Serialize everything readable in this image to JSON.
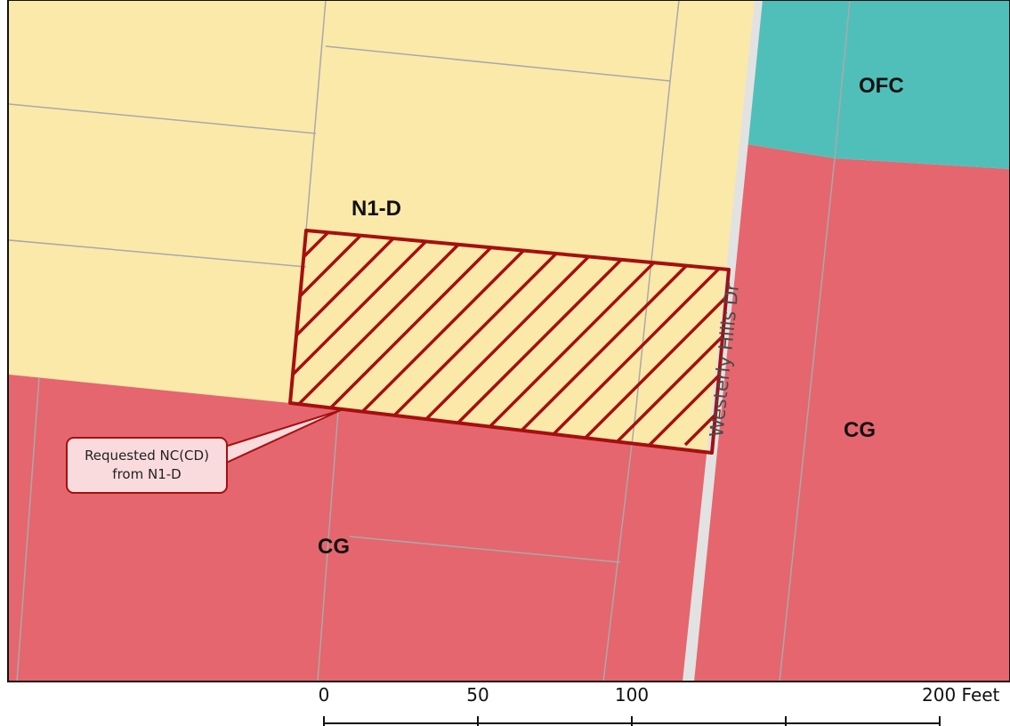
{
  "map": {
    "colors": {
      "n1d_residential": "#fbe9aa",
      "cg_commercial": "#e5666e",
      "ofc_office": "#50bfb9",
      "parcel_line": "#a9a9a9",
      "street": "#e2e2e2",
      "request_outline": "#a60f0f",
      "callout_fill": "#fadbdd"
    },
    "zones": {
      "n1d": "N1-D",
      "ofc": "OFC",
      "cg_right": "CG",
      "cg_lower": "CG"
    },
    "street_name": "Westerly Hills Dr",
    "callout": {
      "line1": "Requested NC(CD)",
      "line2": "from N1-D"
    },
    "scale_bar": {
      "ticks": [
        "0",
        "50",
        "100",
        "200 Feet"
      ]
    }
  }
}
